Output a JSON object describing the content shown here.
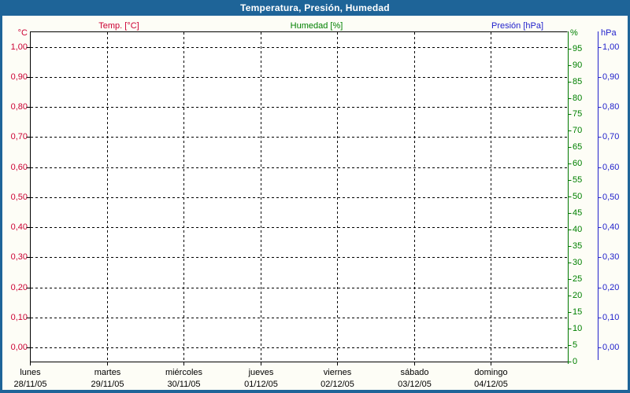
{
  "window": {
    "title": "Temperatura, Presión, Humedad",
    "titlebar_color": "#1e6498",
    "border_color": "#1e6498",
    "background_color": "#fdfdf6",
    "title_text_color": "#ffffff"
  },
  "legend": {
    "position": "top",
    "items": [
      {
        "label": "Temp. [°C]",
        "color": "#cc0033"
      },
      {
        "label": "Humedad [%]",
        "color": "#008000"
      },
      {
        "label": "Presión [hPa]",
        "color": "#2222cc"
      }
    ]
  },
  "chart_data": {
    "type": "line",
    "title": "Temperatura, Presión, Humedad",
    "note": "empty chart – no data series plotted",
    "plot_background": "#ffffff",
    "grid": {
      "horizontal": true,
      "vertical": true,
      "style": "dashed",
      "color": "#000000"
    },
    "legend_position": "top",
    "x_axis": {
      "days": [
        {
          "label": "lunes",
          "date": "28/11/05"
        },
        {
          "label": "martes",
          "date": "29/11/05"
        },
        {
          "label": "miércoles",
          "date": "30/11/05"
        },
        {
          "label": "jueves",
          "date": "01/12/05"
        },
        {
          "label": "viernes",
          "date": "02/12/05"
        },
        {
          "label": "sábado",
          "date": "03/12/05"
        },
        {
          "label": "domingo",
          "date": "04/12/05"
        }
      ]
    },
    "axes": {
      "temperature": {
        "unit": "°C",
        "side": "left",
        "color": "#cc0033",
        "min": 0.0,
        "max": 1.0,
        "tick_step": 0.1,
        "tick_labels": [
          "1,00",
          "0,90",
          "0,80",
          "0,70",
          "0,60",
          "0,50",
          "0,40",
          "0,30",
          "0,20",
          "0,10",
          "0,00"
        ]
      },
      "humidity": {
        "unit": "%",
        "side": "right-inner",
        "color": "#008000",
        "axis_line_color": "#007700",
        "min": 0,
        "max": 100,
        "tick_step": 5,
        "tick_labels": [
          "95",
          "90",
          "85",
          "80",
          "75",
          "70",
          "65",
          "60",
          "55",
          "50",
          "45",
          "40",
          "35",
          "30",
          "25",
          "20",
          "15",
          "10",
          "5",
          "0"
        ]
      },
      "pressure": {
        "unit": "hPa",
        "side": "right-outer",
        "color": "#2222cc",
        "min": 0.0,
        "max": 1.0,
        "tick_step": 0.1,
        "tick_labels": [
          "1,00",
          "0,90",
          "0,80",
          "0,70",
          "0,60",
          "0,50",
          "0,40",
          "0,30",
          "0,20",
          "0,10",
          "0,00"
        ]
      }
    },
    "series": [
      {
        "name": "Temp. [°C]",
        "axis": "temperature",
        "color": "#cc0033",
        "values": []
      },
      {
        "name": "Humedad [%]",
        "axis": "humidity",
        "color": "#008000",
        "values": []
      },
      {
        "name": "Presión [hPa]",
        "axis": "pressure",
        "color": "#2222cc",
        "values": []
      }
    ]
  }
}
